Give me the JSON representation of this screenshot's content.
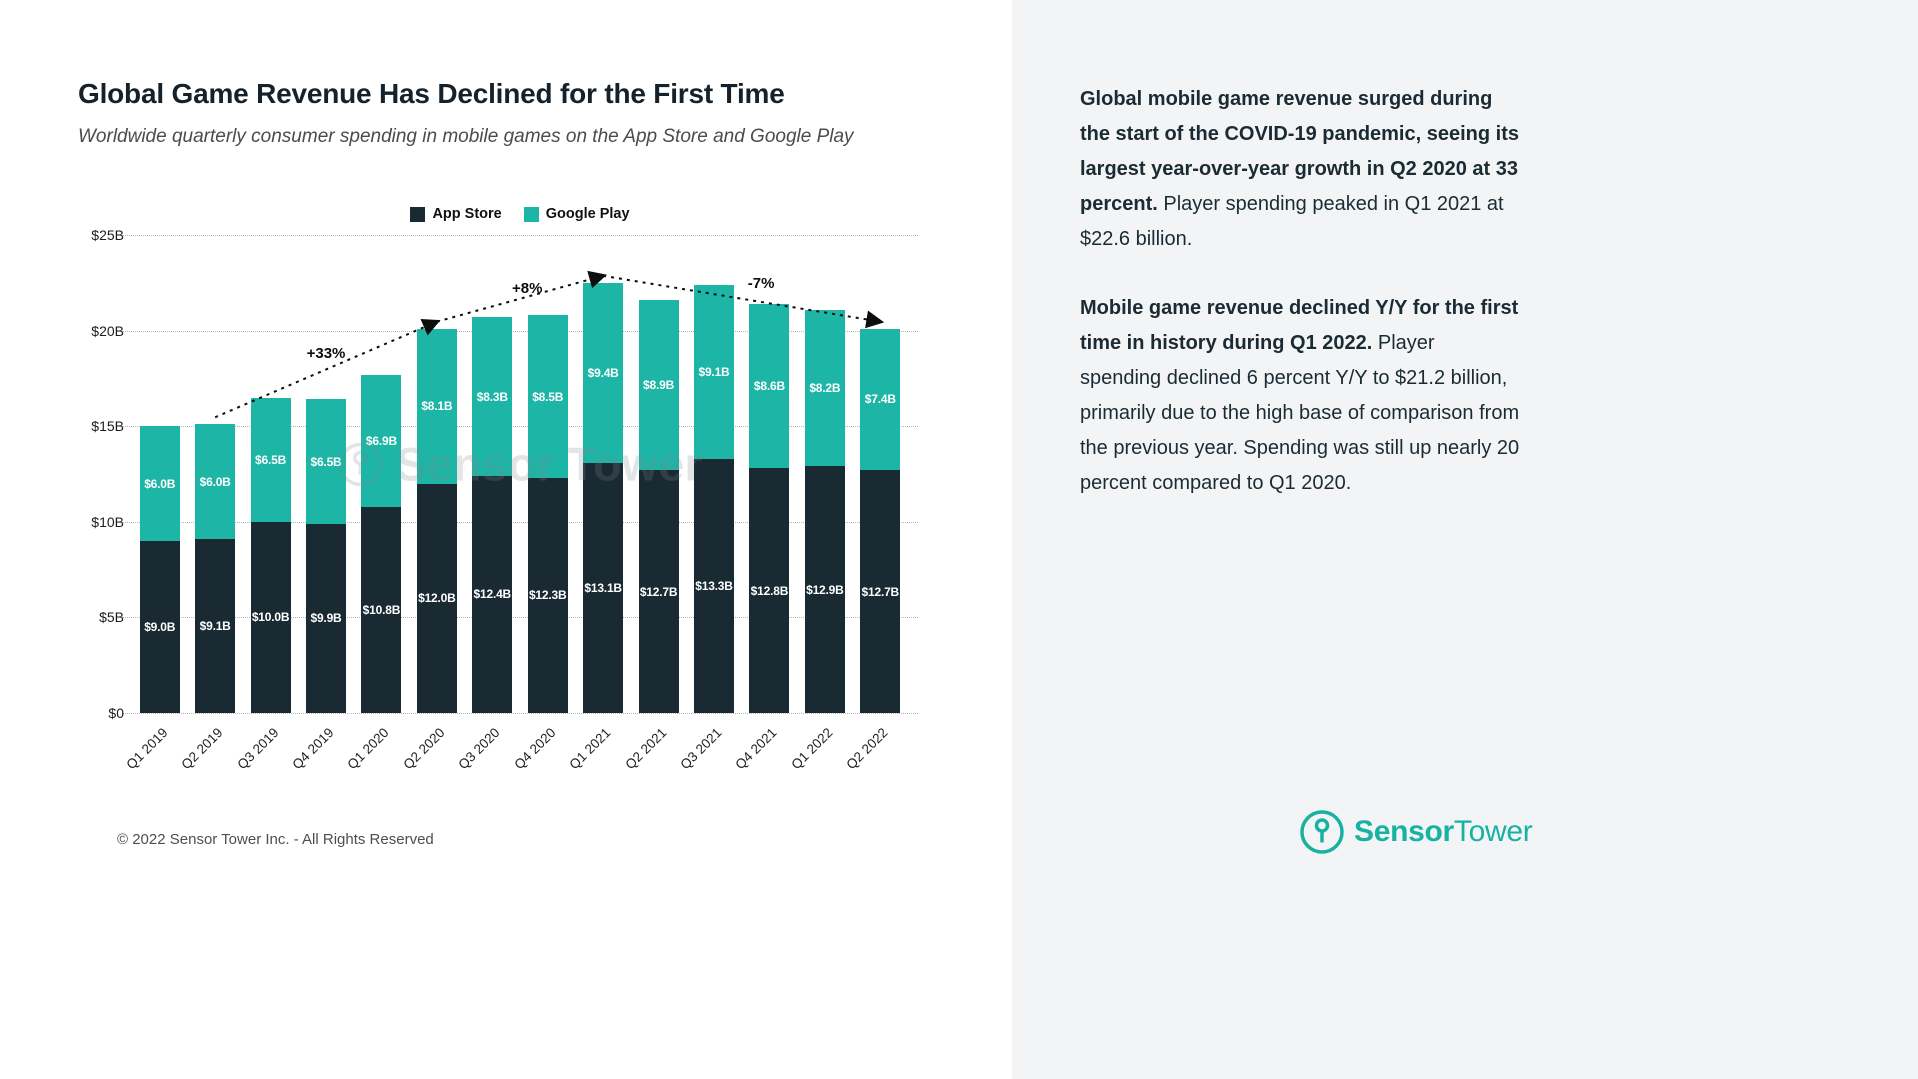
{
  "page": {
    "title": "Global Game Revenue Has Declined for the First Time",
    "subtitle": "Worldwide quarterly consumer spending in mobile games on the App Store and Google Play",
    "footer": "© 2022 Sensor Tower Inc. - All Rights Reserved",
    "watermark": "Sensor Tower"
  },
  "colors": {
    "app_store": "#1a2a33",
    "google_play": "#1db5a5",
    "panel_bg": "#f3f4f6",
    "accent": "#18b2a2",
    "annotation": "#0d0d0d"
  },
  "chart_data": {
    "type": "bar",
    "stacked": true,
    "title": "Global Game Revenue Has Declined for the First Time",
    "subtitle": "Worldwide quarterly consumer spending in mobile games on the App Store and Google Play",
    "categories": [
      "Q1 2019",
      "Q2 2019",
      "Q3 2019",
      "Q4 2019",
      "Q1 2020",
      "Q2 2020",
      "Q3 2020",
      "Q4 2020",
      "Q1 2021",
      "Q2 2021",
      "Q3 2021",
      "Q4 2021",
      "Q1 2022",
      "Q2 2022"
    ],
    "series": [
      {
        "name": "App Store",
        "color_key": "app_store",
        "values": [
          9.0,
          9.1,
          10.0,
          9.9,
          10.8,
          12.0,
          12.4,
          12.3,
          13.1,
          12.7,
          13.3,
          12.8,
          12.9,
          12.7
        ]
      },
      {
        "name": "Google Play",
        "color_key": "google_play",
        "values": [
          6.0,
          6.0,
          6.5,
          6.5,
          6.9,
          8.1,
          8.3,
          8.5,
          9.4,
          8.9,
          9.1,
          8.6,
          8.2,
          7.4
        ]
      }
    ],
    "value_label_format": "$#.#B",
    "ylabel": "",
    "xlabel": "",
    "ylim": [
      0,
      25
    ],
    "yticks": [
      0,
      5,
      10,
      15,
      20,
      25
    ],
    "ytick_labels": [
      "$0",
      "$5B",
      "$10B",
      "$15B",
      "$20B",
      "$25B"
    ],
    "grid": true,
    "legend_position": "top",
    "annotations": [
      {
        "label": "+33%",
        "x_index": 3.0,
        "y_value": 18.7
      },
      {
        "label": "+8%",
        "x_index": 6.63,
        "y_value": 22.1
      },
      {
        "label": "-7%",
        "x_index": 10.85,
        "y_value": 22.4
      }
    ],
    "arrows": [
      {
        "from_index": 1,
        "to_index": 5
      },
      {
        "from_index": 5,
        "to_index": 8
      },
      {
        "from_index": 8,
        "to_index": 13
      }
    ]
  },
  "sidebar": {
    "p1_bold": "Global mobile game revenue surged during the start of the COVID-19 pandemic, seeing its largest year-over-year growth in Q2 2020 at 33 percent.",
    "p1_regular": " Player spending peaked in Q1 2021 at $22.6 billion.",
    "p2_bold": "Mobile game revenue declined Y/Y for the first time in history during Q1 2022.",
    "p2_regular": " Player spending declined 6 percent Y/Y to $21.2 billion, primarily due to the high base of comparison from the previous year. Spending was still up nearly 20 percent compared to Q1 2020.",
    "logo_bold": "Sensor",
    "logo_regular": "Tower"
  }
}
